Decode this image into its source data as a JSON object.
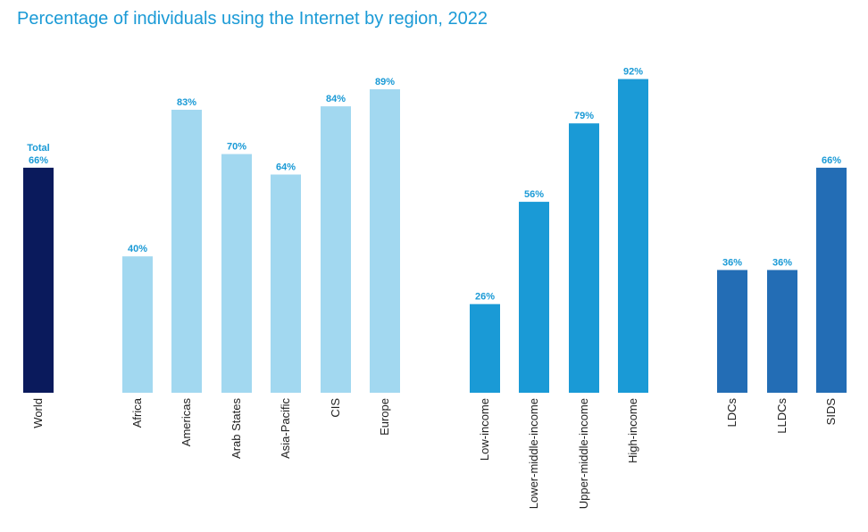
{
  "chart_data": {
    "type": "bar",
    "title": "Percentage of individuals using the Internet by region, 2022",
    "xlabel": "",
    "ylabel": "",
    "ylim": [
      0,
      100
    ],
    "grid": false,
    "categories": [
      "World",
      "Africa",
      "Americas",
      "Arab States",
      "Asia-Pacific",
      "CIS",
      "Europe",
      "Low-income",
      "Lower-middle-income",
      "Upper-middle-income",
      "High-income",
      "LDCs",
      "LLDCs",
      "SIDS"
    ],
    "values": [
      66,
      40,
      83,
      70,
      64,
      84,
      89,
      26,
      56,
      79,
      92,
      36,
      36,
      66
    ],
    "value_labels": [
      "66%",
      "40%",
      "83%",
      "70%",
      "64%",
      "84%",
      "89%",
      "26%",
      "56%",
      "79%",
      "92%",
      "36%",
      "36%",
      "66%"
    ],
    "annotations": [
      {
        "category": "World",
        "text": "Total"
      }
    ],
    "bar_colors": [
      "#0a1a5c",
      "#a2d8f0",
      "#a2d8f0",
      "#a2d8f0",
      "#a2d8f0",
      "#a2d8f0",
      "#a2d8f0",
      "#1a9ad6",
      "#1a9ad6",
      "#1a9ad6",
      "#1a9ad6",
      "#236db5",
      "#236db5",
      "#236db5"
    ]
  }
}
